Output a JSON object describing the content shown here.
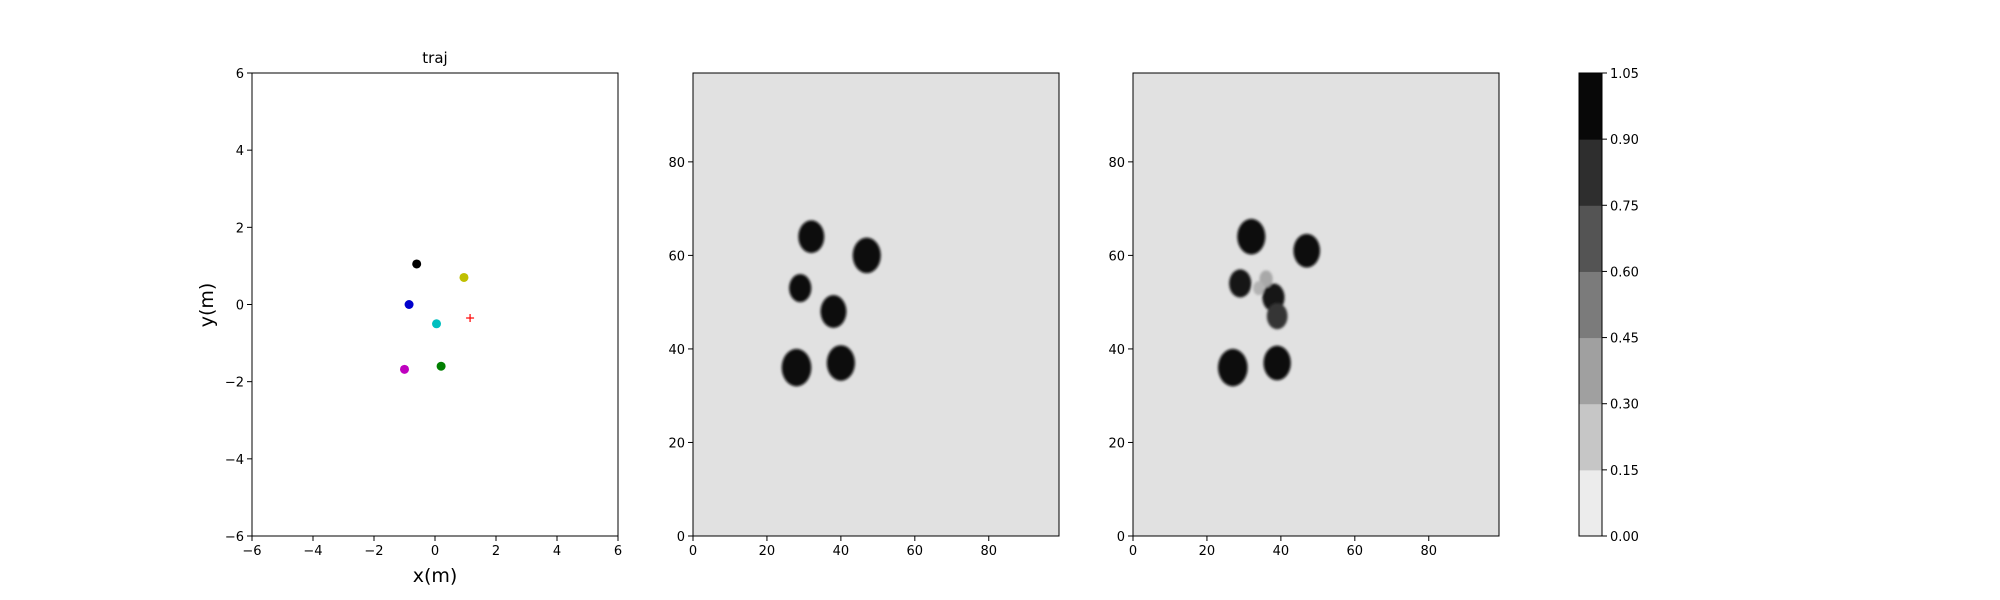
{
  "chart_data": [
    {
      "type": "scatter",
      "title": "traj",
      "xlabel": "x(m)",
      "ylabel": "y(m)",
      "xlim": [
        -6,
        6
      ],
      "ylim": [
        -6,
        6
      ],
      "xticks": [
        "−6",
        "−4",
        "−2",
        "0",
        "2",
        "4",
        "6"
      ],
      "yticks": [
        "−6",
        "−4",
        "−2",
        "0",
        "2",
        "4",
        "6"
      ],
      "grid": false,
      "points": [
        {
          "x": -0.6,
          "y": 1.05,
          "color": "#000000",
          "marker": "circle"
        },
        {
          "x": 0.95,
          "y": 0.7,
          "color": "#bfbf00",
          "marker": "circle"
        },
        {
          "x": -0.85,
          "y": 0.0,
          "color": "#0000cc",
          "marker": "circle"
        },
        {
          "x": 0.05,
          "y": -0.5,
          "color": "#00bfbf",
          "marker": "circle"
        },
        {
          "x": 1.15,
          "y": -0.35,
          "color": "#ff0000",
          "marker": "plus"
        },
        {
          "x": 0.2,
          "y": -1.6,
          "color": "#007f00",
          "marker": "circle"
        },
        {
          "x": -1.0,
          "y": -1.68,
          "color": "#bf00bf",
          "marker": "circle"
        }
      ]
    },
    {
      "type": "heatmap",
      "title": "",
      "xlim": [
        0,
        99
      ],
      "ylim": [
        0,
        99
      ],
      "xticks": [
        "0",
        "20",
        "40",
        "60",
        "80"
      ],
      "yticks": [
        "0",
        "20",
        "40",
        "60",
        "80"
      ],
      "background_level": 0.05,
      "blobs": [
        {
          "x": 32,
          "y": 64,
          "r": 3.5,
          "level": 1.0
        },
        {
          "x": 47,
          "y": 60,
          "r": 3.8,
          "level": 1.0
        },
        {
          "x": 29,
          "y": 53,
          "r": 3.0,
          "level": 1.0
        },
        {
          "x": 38,
          "y": 48,
          "r": 3.5,
          "level": 1.0
        },
        {
          "x": 28,
          "y": 36,
          "r": 4.0,
          "level": 1.0
        },
        {
          "x": 40,
          "y": 37,
          "r": 3.8,
          "level": 1.0
        }
      ]
    },
    {
      "type": "heatmap",
      "title": "",
      "xlim": [
        0,
        99
      ],
      "ylim": [
        0,
        99
      ],
      "xticks": [
        "0",
        "20",
        "40",
        "60",
        "80"
      ],
      "yticks": [
        "0",
        "20",
        "40",
        "60",
        "80"
      ],
      "background_level": 0.05,
      "blobs": [
        {
          "x": 32,
          "y": 64,
          "r": 3.8,
          "level": 1.0
        },
        {
          "x": 47,
          "y": 61,
          "r": 3.6,
          "level": 1.0
        },
        {
          "x": 29,
          "y": 54,
          "r": 3.0,
          "level": 0.95
        },
        {
          "x": 38,
          "y": 51,
          "r": 3.0,
          "level": 0.95
        },
        {
          "x": 39,
          "y": 47,
          "r": 2.8,
          "level": 0.8
        },
        {
          "x": 36,
          "y": 55,
          "r": 1.8,
          "level": 0.3
        },
        {
          "x": 34,
          "y": 53,
          "r": 1.5,
          "level": 0.25
        },
        {
          "x": 27,
          "y": 36,
          "r": 4.0,
          "level": 1.0
        },
        {
          "x": 39,
          "y": 37,
          "r": 3.7,
          "level": 1.0
        }
      ]
    },
    {
      "type": "colorbar",
      "levels": [
        "0.00",
        "0.15",
        "0.30",
        "0.45",
        "0.60",
        "0.75",
        "0.90",
        "1.05"
      ],
      "colors": [
        "#ececec",
        "#c6c6c6",
        "#a0a0a0",
        "#7b7b7b",
        "#545454",
        "#2e2e2e",
        "#080808"
      ]
    }
  ]
}
